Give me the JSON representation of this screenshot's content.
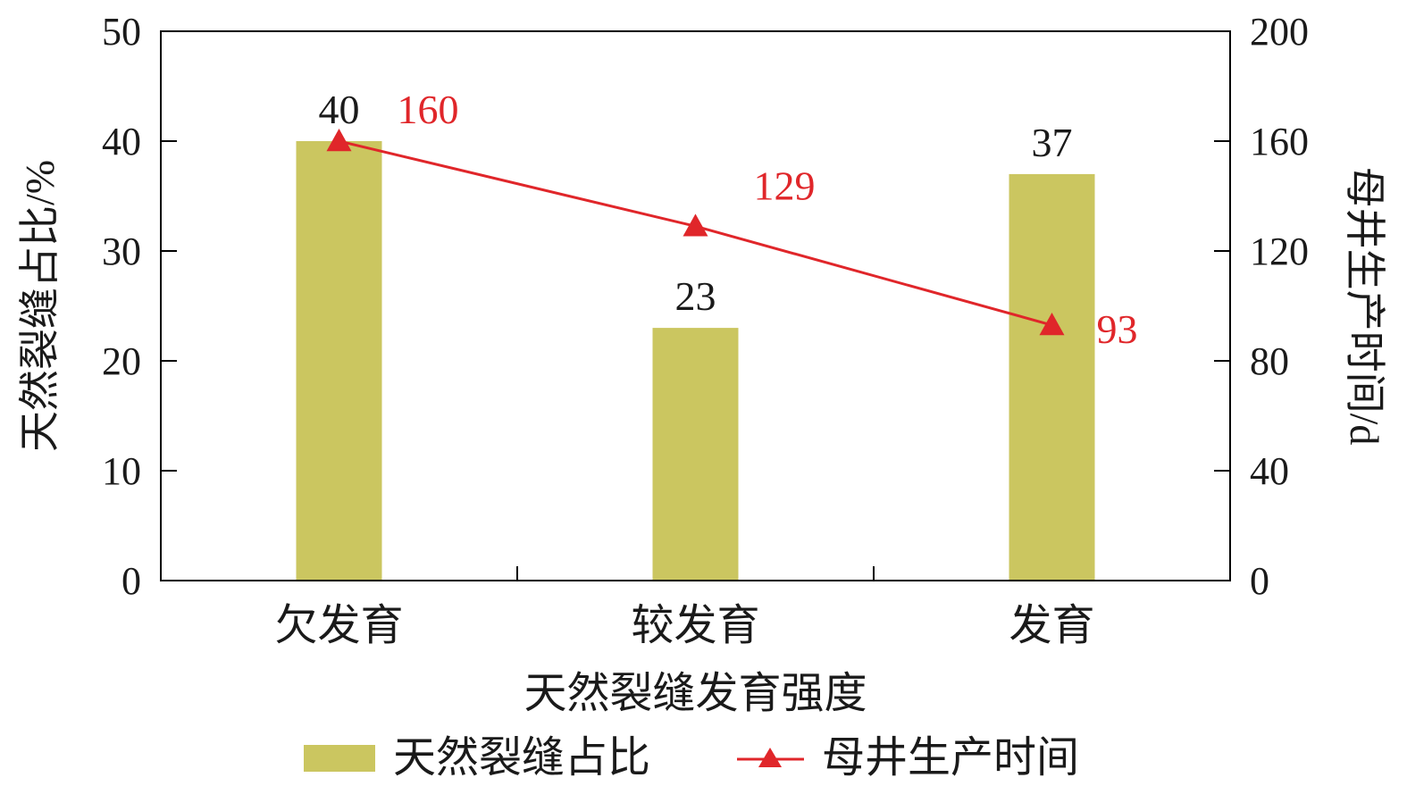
{
  "chart_data": {
    "type": "bar",
    "categories": [
      "欠发育",
      "较发育",
      "发育"
    ],
    "xlabel": "天然裂缝发育强度",
    "ylabel": "天然裂缝占比/%",
    "y2label": "母井生产时间/d",
    "ylim": [
      0,
      50
    ],
    "y2lim": [
      0,
      200
    ],
    "yticks": [
      0,
      10,
      20,
      30,
      40,
      50
    ],
    "y2ticks": [
      0,
      40,
      80,
      120,
      160,
      200
    ],
    "grid": false,
    "legend_position": "bottom",
    "series": [
      {
        "name": "天然裂缝占比",
        "type": "bar",
        "axis": "left",
        "values": [
          40,
          23,
          37
        ],
        "labels": [
          "40",
          "23",
          "37"
        ],
        "color": "#cbc660"
      },
      {
        "name": "母井生产时间",
        "type": "line",
        "axis": "right",
        "marker": "triangle",
        "values": [
          160,
          129,
          93
        ],
        "labels": [
          "160",
          "129",
          "93"
        ],
        "color": "#e0262a"
      }
    ]
  }
}
